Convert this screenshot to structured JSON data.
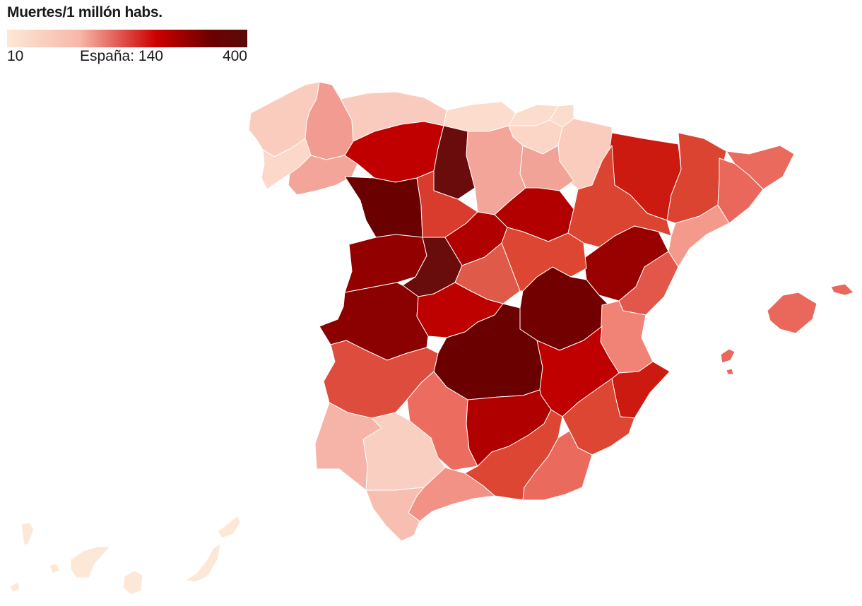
{
  "legend": {
    "title": "Muertes/1 millón habs.",
    "min_label": "10",
    "mid_label": "España: 140",
    "max_label": "400",
    "gradient_colors": [
      "#fde8d7",
      "#f7b8a9",
      "#cc0000",
      "#6b0000",
      "#5a0a0a"
    ]
  },
  "regions": [
    {
      "name": "A Coruña",
      "color": "#f9ccbd"
    },
    {
      "name": "Lugo",
      "color": "#f29c91"
    },
    {
      "name": "Pontevedra",
      "color": "#fbd8c9"
    },
    {
      "name": "Ourense",
      "color": "#f4a59a"
    },
    {
      "name": "Asturias",
      "color": "#f9cbbe"
    },
    {
      "name": "Cantabria",
      "color": "#fcdccd"
    },
    {
      "name": "Bizkaia",
      "color": "#fcdccd"
    },
    {
      "name": "Gipuzkoa",
      "color": "#fcdccd"
    },
    {
      "name": "Araba",
      "color": "#fbd6c7"
    },
    {
      "name": "Navarra",
      "color": "#f9ccbd"
    },
    {
      "name": "León",
      "color": "#c00000"
    },
    {
      "name": "Palencia",
      "color": "#6a0c0c"
    },
    {
      "name": "Burgos",
      "color": "#f4a59a"
    },
    {
      "name": "La Rioja",
      "color": "#f2a397"
    },
    {
      "name": "Zamora",
      "color": "#6b0000"
    },
    {
      "name": "Valladolid",
      "color": "#d93c2c"
    },
    {
      "name": "Soria",
      "color": "#b20000"
    },
    {
      "name": "Huesca",
      "color": "#cc1a10"
    },
    {
      "name": "Lleida",
      "color": "#dc4432"
    },
    {
      "name": "Girona",
      "color": "#ea6a5e"
    },
    {
      "name": "Barcelona",
      "color": "#e9675b"
    },
    {
      "name": "Tarragona",
      "color": "#f49a8c"
    },
    {
      "name": "Zaragoza",
      "color": "#dc4432"
    },
    {
      "name": "Teruel",
      "color": "#990000"
    },
    {
      "name": "Salamanca",
      "color": "#920000"
    },
    {
      "name": "Ávila",
      "color": "#6a0c0c"
    },
    {
      "name": "Segovia",
      "color": "#b00000"
    },
    {
      "name": "Madrid",
      "color": "#e05a4a"
    },
    {
      "name": "Guadalajara",
      "color": "#dd4633"
    },
    {
      "name": "Cuenca",
      "color": "#730000"
    },
    {
      "name": "Castellón",
      "color": "#e3574a"
    },
    {
      "name": "Valencia",
      "color": "#f08276"
    },
    {
      "name": "Alicante",
      "color": "#cc1a10"
    },
    {
      "name": "Cáceres",
      "color": "#8b0000"
    },
    {
      "name": "Toledo",
      "color": "#bd0000"
    },
    {
      "name": "Ciudad Real",
      "color": "#6b0000"
    },
    {
      "name": "Albacete",
      "color": "#c00000"
    },
    {
      "name": "Badajoz",
      "color": "#dd4c3c"
    },
    {
      "name": "Huelva",
      "color": "#f6b3a7"
    },
    {
      "name": "Sevilla",
      "color": "#f8cfc1"
    },
    {
      "name": "Córdoba",
      "color": "#ec6c60"
    },
    {
      "name": "Jaén",
      "color": "#b00000"
    },
    {
      "name": "Murcia",
      "color": "#dd4633"
    },
    {
      "name": "Granada",
      "color": "#dd4633"
    },
    {
      "name": "Almería",
      "color": "#ea6a5e"
    },
    {
      "name": "Málaga",
      "color": "#f29186"
    },
    {
      "name": "Cádiz",
      "color": "#f8bfb1"
    },
    {
      "name": "Illes Balears",
      "color": "#e9675b"
    },
    {
      "name": "Canarias",
      "color": "#fde8d7"
    }
  ]
}
